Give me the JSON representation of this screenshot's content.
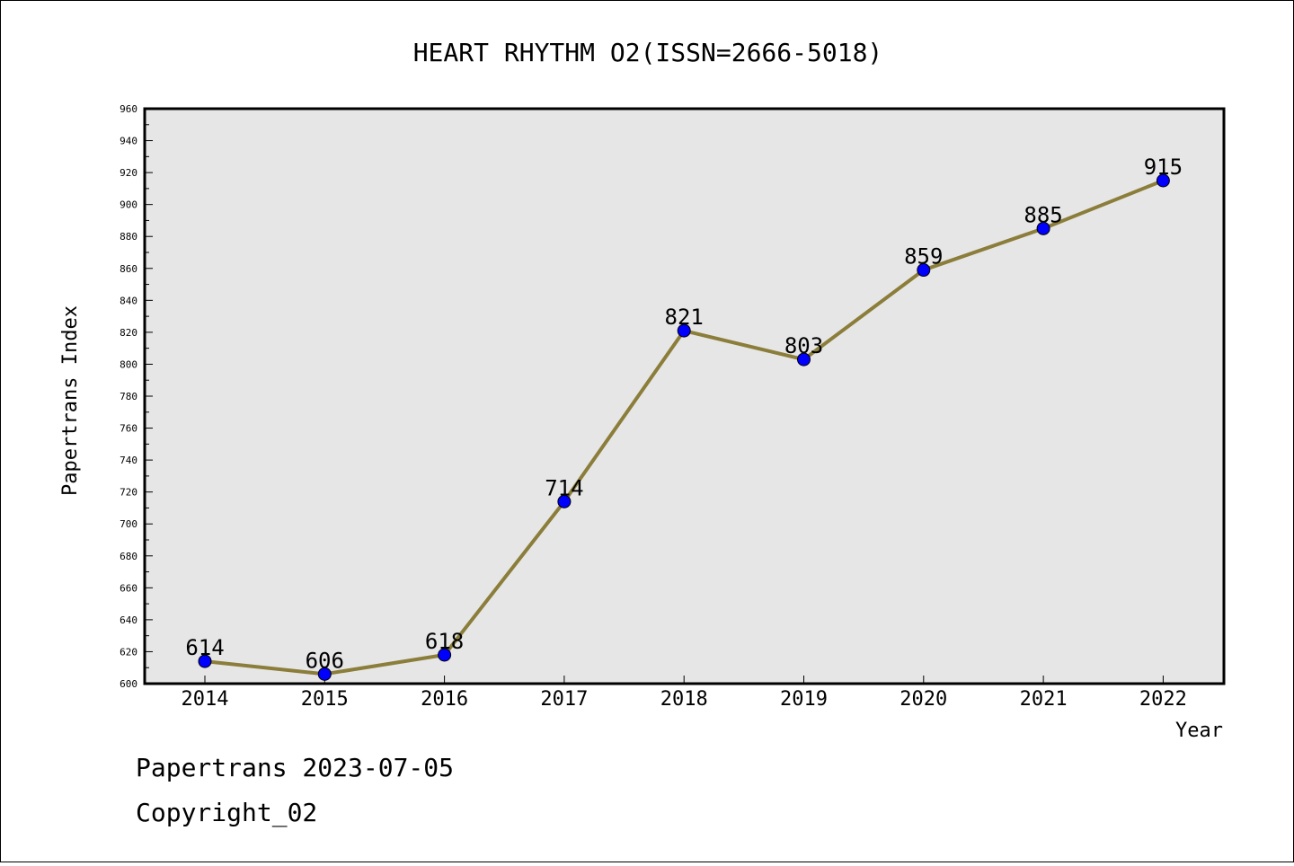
{
  "chart_data": {
    "type": "line",
    "title": "HEART RHYTHM O2(ISSN=2666-5018)",
    "xlabel": "Year",
    "ylabel": "Papertrans Index",
    "categories": [
      "2014",
      "2015",
      "2016",
      "2017",
      "2018",
      "2019",
      "2020",
      "2021",
      "2022"
    ],
    "series": [
      {
        "values": [
          614,
          606,
          618,
          714,
          821,
          803,
          859,
          885,
          915
        ]
      }
    ],
    "ylim": [
      600,
      960
    ],
    "yticks": [
      "600",
      "620",
      "640",
      "660",
      "680",
      "700",
      "720",
      "740",
      "760",
      "780",
      "800",
      "820",
      "840",
      "860",
      "880",
      "900",
      "920",
      "940",
      "960"
    ],
    "grid": false,
    "colors": {
      "line": "#8b7d3a",
      "marker": "#0000ff",
      "plot_bg": "#e6e6e6"
    }
  },
  "footer": {
    "line1": "Papertrans 2023-07-05",
    "line2": "Copyright_02"
  }
}
